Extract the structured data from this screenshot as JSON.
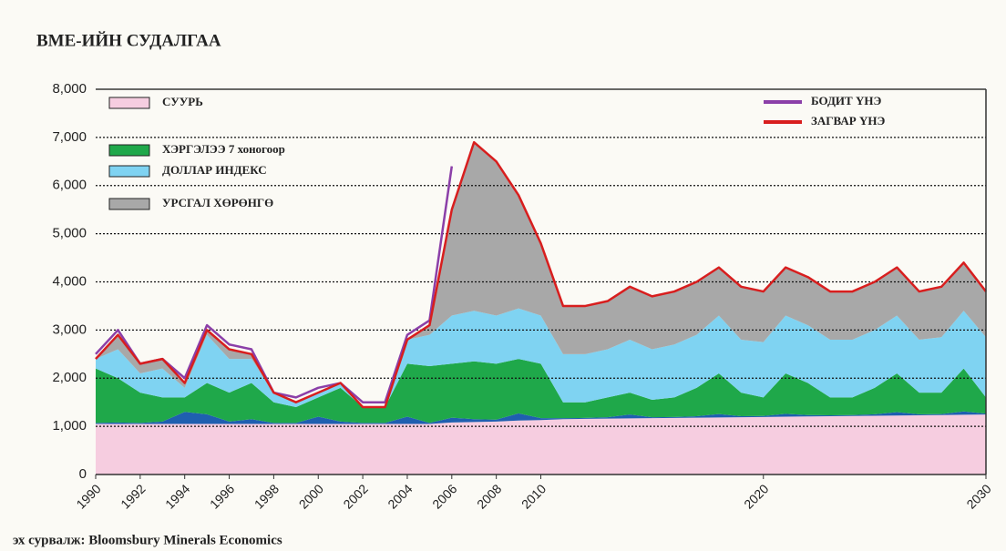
{
  "chart_data": {
    "type": "stacked_area",
    "title": "ВМЕ-ИЙН СУДАЛГАА",
    "source": "эх сурвалж: Bloomsbury Minerals Economics",
    "x": [
      1990,
      1991,
      1992,
      1993,
      1994,
      1995,
      1996,
      1997,
      1998,
      1999,
      2000,
      2001,
      2002,
      2003,
      2004,
      2005,
      2006,
      2007,
      2008,
      2009,
      2010,
      2011,
      2012,
      2013,
      2014,
      2015,
      2016,
      2017,
      2018,
      2019,
      2020,
      2021,
      2022,
      2023,
      2024,
      2025,
      2026,
      2027,
      2028,
      2029,
      2030
    ],
    "series": [
      {
        "name": "СУУРЬ",
        "color": "#f6cde0",
        "values": [
          1050,
          1050,
          1050,
          1050,
          1050,
          1050,
          1050,
          1050,
          1050,
          1050,
          1050,
          1050,
          1050,
          1050,
          1050,
          1050,
          1080,
          1090,
          1100,
          1120,
          1130,
          1150,
          1155,
          1160,
          1165,
          1170,
          1175,
          1180,
          1185,
          1190,
          1195,
          1200,
          1205,
          1210,
          1215,
          1220,
          1225,
          1230,
          1235,
          1240,
          1245
        ]
      },
      {
        "color": "#1f5fb0",
        "values": [
          20,
          30,
          20,
          50,
          250,
          200,
          50,
          100,
          20,
          20,
          150,
          50,
          20,
          20,
          150,
          20,
          100,
          60,
          40,
          150,
          40,
          20,
          20,
          30,
          80,
          20,
          20,
          30,
          70,
          20,
          20,
          60,
          30,
          20,
          20,
          30,
          70,
          20,
          20,
          70,
          20
        ]
      },
      {
        "name": "ХЭРГЭЛЭЭ 7 хоногоор",
        "color": "#1fa84a",
        "values": [
          1130,
          920,
          630,
          500,
          300,
          650,
          600,
          750,
          430,
          330,
          400,
          700,
          330,
          330,
          1100,
          1180,
          1120,
          1200,
          1160,
          1130,
          1130,
          330,
          325,
          410,
          455,
          360,
          405,
          590,
          845,
          490,
          385,
          840,
          665,
          370,
          365,
          550,
          805,
          450,
          445,
          890,
          335
        ]
      },
      {
        "name": "ДОЛЛАР ИНДЕКС",
        "color": "#7fd3f2",
        "values": [
          200,
          600,
          400,
          600,
          200,
          1000,
          700,
          500,
          200,
          100,
          100,
          100,
          0,
          0,
          500,
          650,
          1000,
          1050,
          1000,
          1050,
          1000,
          1000,
          1000,
          1000,
          1100,
          1050,
          1100,
          1100,
          1200,
          1100,
          1150,
          1200,
          1200,
          1200,
          1200,
          1200,
          1200,
          1100,
          1150,
          1200,
          1250
        ]
      },
      {
        "name": "УРСГАЛ ХӨРӨНГӨ",
        "color": "#a8a8a8",
        "values": [
          0,
          300,
          200,
          200,
          100,
          100,
          200,
          100,
          0,
          0,
          0,
          0,
          0,
          0,
          0,
          200,
          2200,
          3500,
          3200,
          2350,
          1500,
          1000,
          1000,
          1000,
          1100,
          1100,
          1100,
          1100,
          1000,
          1100,
          1050,
          1000,
          1000,
          1000,
          1000,
          1000,
          1000,
          1000,
          1050,
          1000,
          950
        ]
      }
    ],
    "lines": [
      {
        "name": "БОДИТ ҮНЭ",
        "color": "#8b3fa8",
        "values": [
          2500,
          3000,
          2300,
          2400,
          2000,
          3100,
          2700,
          2600,
          1700,
          1600,
          1800,
          1900,
          1500,
          1500,
          2900,
          3200,
          6400,
          null,
          null,
          null,
          null,
          null,
          null,
          null,
          null,
          null,
          null,
          null,
          null,
          null,
          null,
          null,
          null,
          null,
          null,
          null,
          null,
          null,
          null,
          null,
          null
        ]
      },
      {
        "name": "ЗАГВАР ҮНЭ",
        "color": "#d81e1e",
        "values": [
          2400,
          2900,
          2300,
          2400,
          1900,
          3000,
          2600,
          2500,
          1700,
          1500,
          1700,
          1900,
          1400,
          1400,
          2800,
          3100,
          5500,
          6900,
          6500,
          5800,
          4800,
          3500,
          3500,
          3600,
          3900,
          3700,
          3800,
          4000,
          4300,
          3900,
          3800,
          4300,
          4100,
          3800,
          3800,
          4000,
          4300,
          3800,
          3900,
          4400,
          3800
        ]
      }
    ],
    "xlim": [
      1990,
      2030
    ],
    "xticks": [
      1990,
      1992,
      1994,
      1996,
      1998,
      2000,
      2002,
      2004,
      2006,
      2008,
      2010,
      2020,
      2030
    ],
    "ylim": [
      0,
      8000
    ],
    "yticks": [
      0,
      {
        "value": 1000,
        "label": "1,000"
      },
      {
        "value": 2000,
        "label": "2,000"
      },
      {
        "value": 3000,
        "label": "3,000"
      },
      {
        "value": 4000,
        "label": "4,000"
      },
      {
        "value": 5000,
        "label": "5,000"
      },
      {
        "value": 6000,
        "label": "6,000"
      },
      {
        "value": 7000,
        "label": "7,000"
      },
      {
        "value": 8000,
        "label": "8,000"
      }
    ],
    "grid": true
  }
}
